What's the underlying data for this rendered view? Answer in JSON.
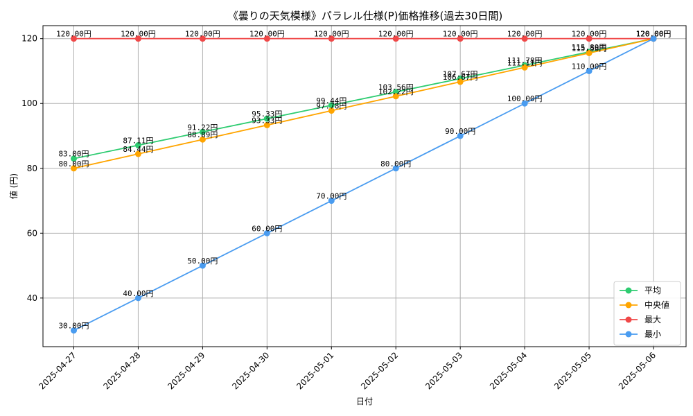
{
  "chart_data": {
    "type": "line",
    "title": "《曇りの天気模様》パラレル仕様(P)価格推移(過去30日間)",
    "xlabel": "日付",
    "ylabel": "値 (円)",
    "categories": [
      "2025-04-27",
      "2025-04-28",
      "2025-04-29",
      "2025-04-30",
      "2025-05-01",
      "2025-05-02",
      "2025-05-03",
      "2025-05-04",
      "2025-05-05",
      "2025-05-06"
    ],
    "ylim": [
      25,
      124
    ],
    "yticks": [
      40,
      60,
      80,
      100,
      120
    ],
    "grid": true,
    "legend_position": "bottom-right",
    "value_suffix": "円",
    "series": [
      {
        "name": "平均",
        "color": "#2ecc71",
        "values": [
          83.0,
          87.11,
          91.22,
          95.33,
          99.44,
          103.56,
          107.67,
          111.78,
          115.89,
          120.0
        ]
      },
      {
        "name": "中央値",
        "color": "#ffa500",
        "values": [
          80.0,
          84.44,
          88.89,
          93.33,
          97.78,
          102.22,
          106.67,
          111.11,
          115.56,
          120.0
        ]
      },
      {
        "name": "最大",
        "color": "#f04848",
        "values": [
          120.0,
          120.0,
          120.0,
          120.0,
          120.0,
          120.0,
          120.0,
          120.0,
          120.0,
          120.0
        ]
      },
      {
        "name": "最小",
        "color": "#4a9cf0",
        "values": [
          30.0,
          40.0,
          50.0,
          60.0,
          70.0,
          80.0,
          90.0,
          100.0,
          110.0,
          120.0
        ]
      }
    ]
  }
}
